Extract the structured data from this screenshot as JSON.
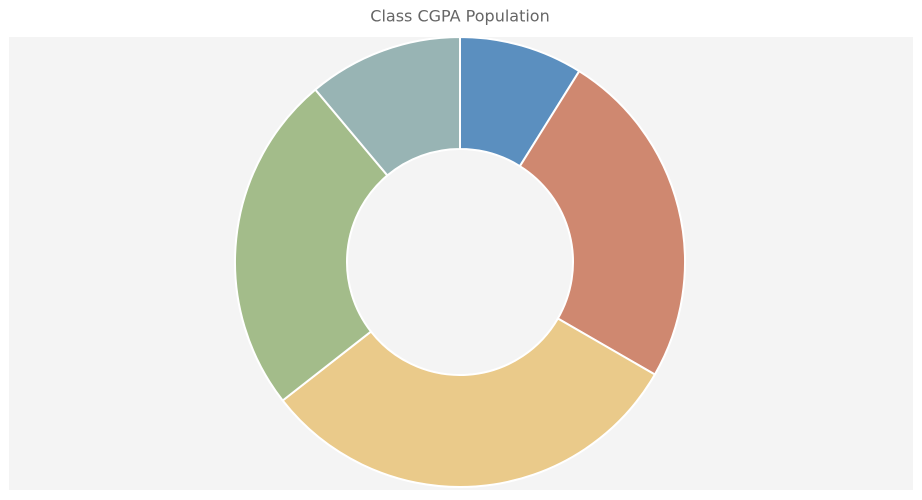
{
  "chart_data": {
    "type": "donut",
    "title": "Class CGPA Population",
    "values": [
      8,
      22,
      28,
      22,
      10
    ],
    "colors": [
      "#5b8fbf",
      "#cf8870",
      "#eaca8a",
      "#a3bc8a",
      "#98b4b4"
    ]
  }
}
